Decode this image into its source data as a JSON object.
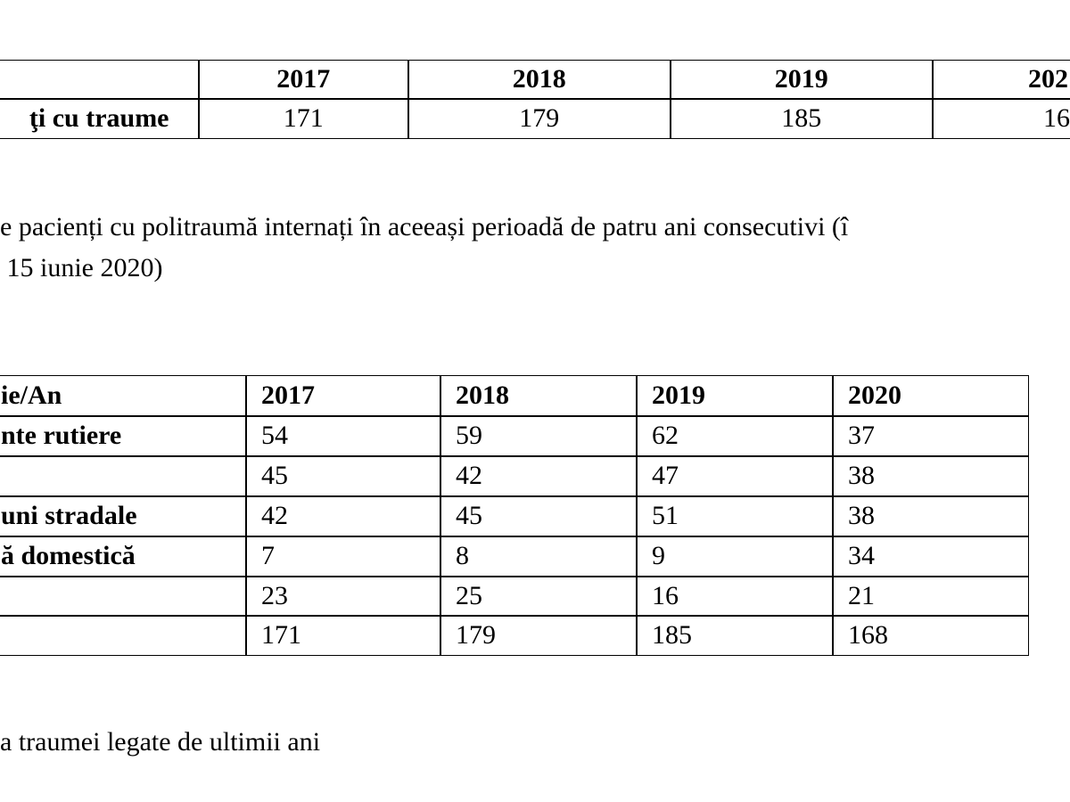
{
  "table1": {
    "header": [
      "2017",
      "2018",
      "2019",
      "202"
    ],
    "row": {
      "label": "ţi cu traume",
      "values": [
        171,
        179,
        185,
        "16"
      ]
    }
  },
  "paragraph": {
    "lines": [
      "e pacienți cu politraumă internați în aceeași perioadă de patru ani consecutivi (î",
      " 15 iunie 2020)"
    ]
  },
  "table2": {
    "header": {
      "label": "ie/An",
      "years": [
        "2017",
        "2018",
        "2019",
        "2020"
      ]
    },
    "rows": [
      {
        "label": "nte rutiere",
        "values": [
          54,
          59,
          62,
          37
        ]
      },
      {
        "values": [
          45,
          42,
          47,
          38
        ]
      },
      {
        "label": "uni stradale",
        "values": [
          42,
          45,
          51,
          38
        ]
      },
      {
        "label": "ă domestică",
        "values": [
          7,
          8,
          9,
          34
        ]
      },
      {
        "values": [
          23,
          25,
          16,
          21
        ]
      },
      {
        "values": [
          171,
          179,
          185,
          168
        ]
      }
    ]
  },
  "footer": {
    "text": "a traumei legate de ultimii ani"
  }
}
